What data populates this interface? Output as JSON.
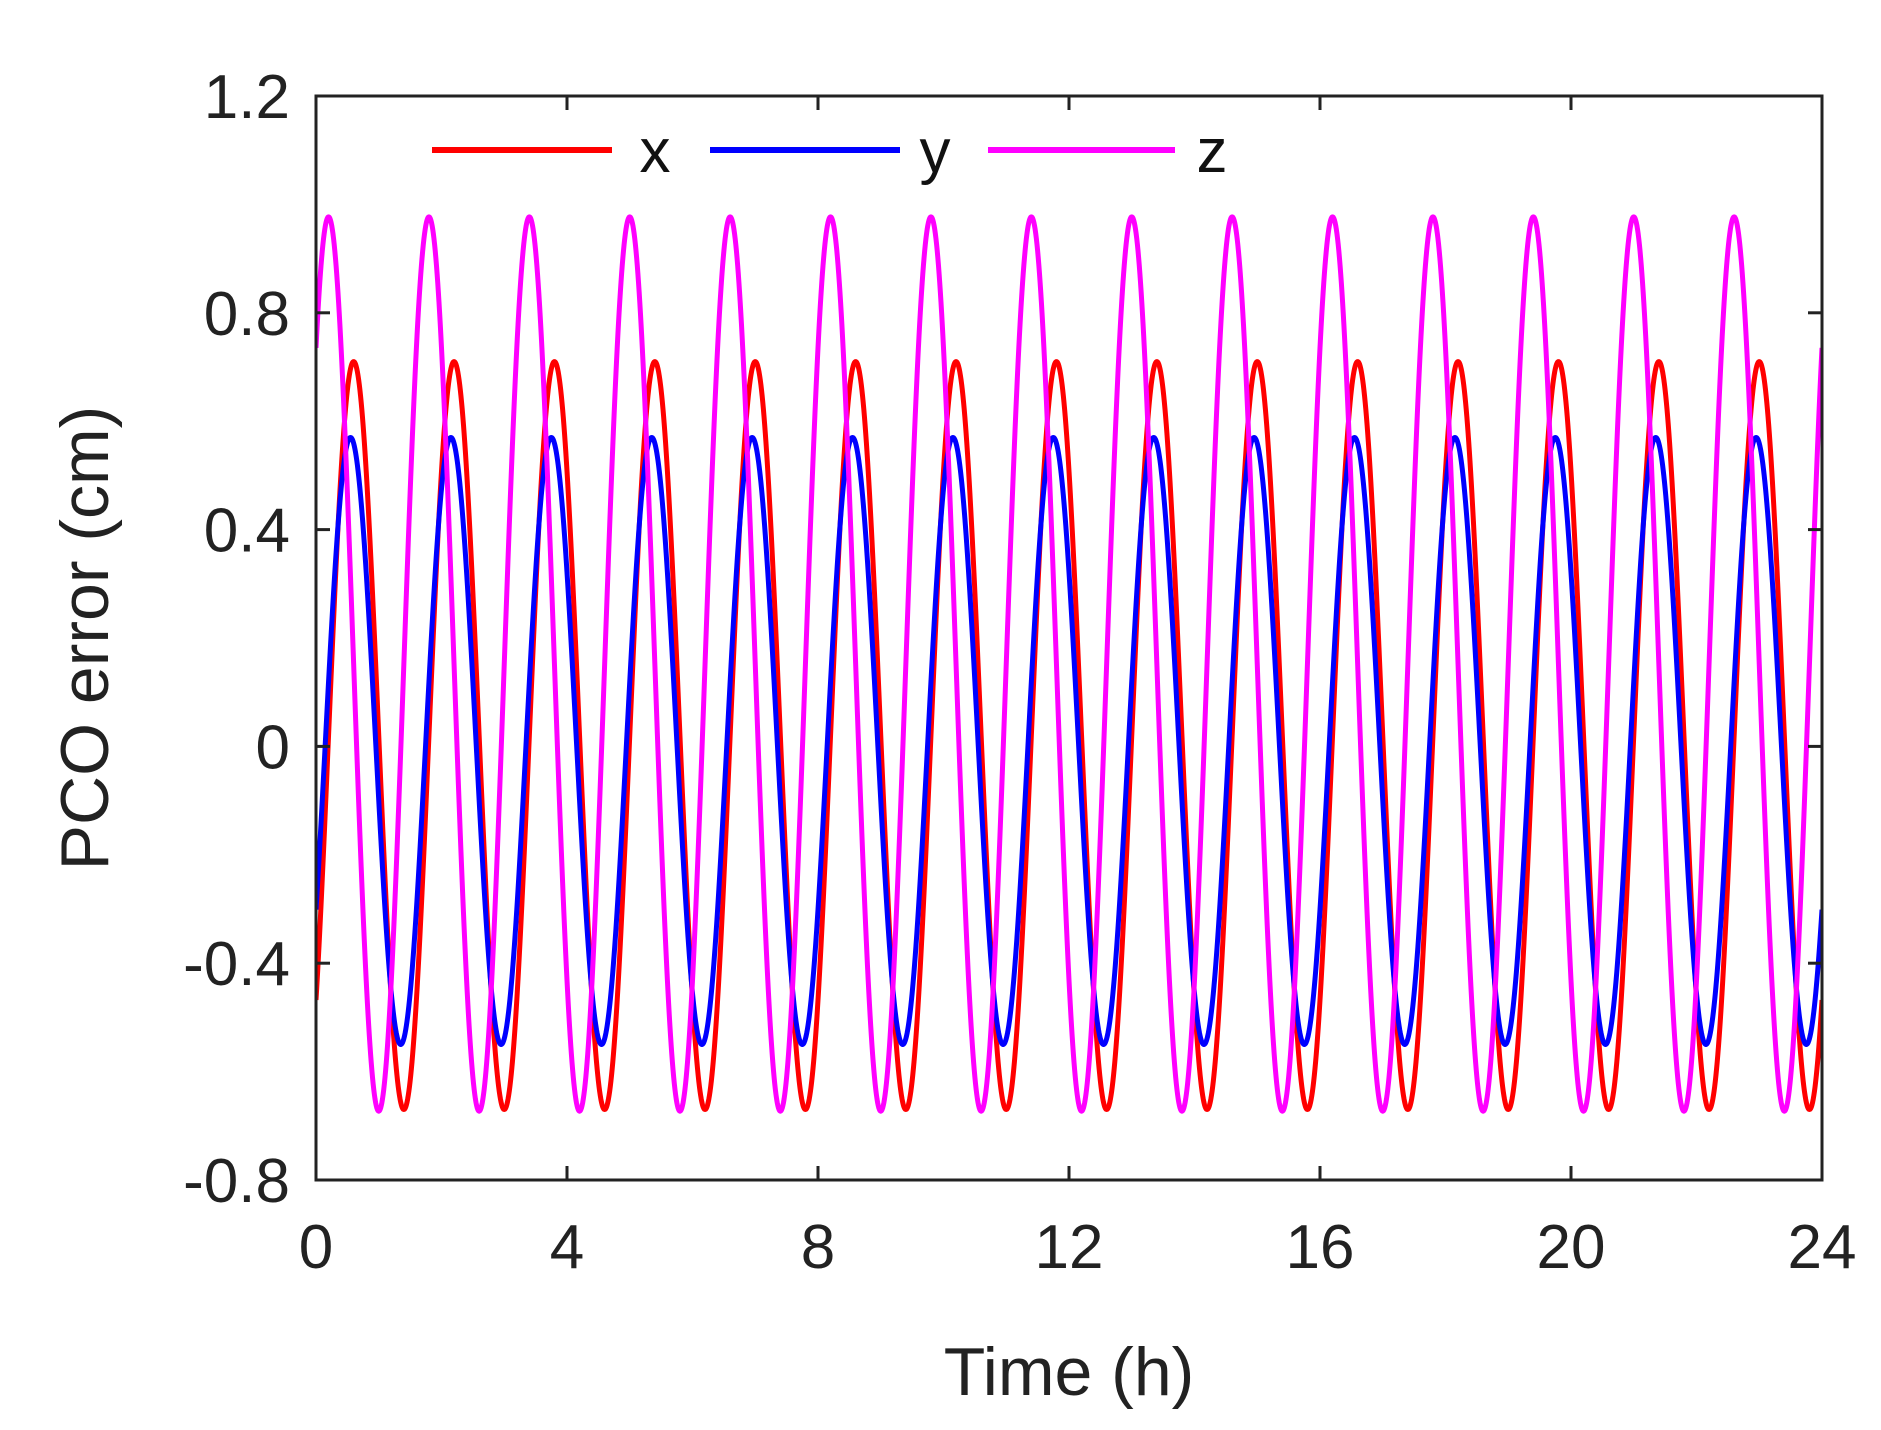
{
  "chart_data": {
    "type": "line",
    "title": "",
    "xlabel": "Time (h)",
    "ylabel": "PCO error (cm)",
    "xlim": [
      0,
      24
    ],
    "ylim": [
      -0.8,
      1.2
    ],
    "xticks": [
      0,
      4,
      8,
      12,
      16,
      20,
      24
    ],
    "yticks": [
      -0.8,
      -0.4,
      0,
      0.4,
      0.8,
      1.2
    ],
    "xtick_labels": [
      "0",
      "4",
      "8",
      "12",
      "16",
      "20",
      "24"
    ],
    "ytick_labels": [
      "-0.8",
      "-0.4",
      "0",
      "0.4",
      "0.8",
      "1.2"
    ],
    "grid": false,
    "legend_position": "top",
    "series": [
      {
        "name": "x",
        "color": "#ff0000",
        "period_h": 1.6,
        "amplitude_cm": 0.69,
        "offset_cm": 0.02,
        "first_peak_h": 0.6,
        "samples": {
          "x": [
            0.6,
            1.4,
            2.2,
            3.0,
            3.8,
            4.6,
            5.4,
            6.2,
            7.0,
            7.8,
            8.6,
            9.4,
            10.2,
            11.0,
            11.8,
            12.6,
            13.4,
            14.2,
            15.0,
            15.8,
            16.6,
            17.4,
            18.2,
            19.0,
            19.8,
            20.6,
            21.4,
            22.2,
            23.0
          ],
          "y": [
            0.71,
            -0.66,
            0.71,
            -0.66,
            0.71,
            -0.66,
            0.71,
            -0.66,
            0.71,
            -0.66,
            0.7,
            -0.66,
            0.7,
            -0.66,
            0.7,
            -0.66,
            0.7,
            -0.66,
            0.7,
            -0.66,
            0.7,
            -0.66,
            0.7,
            -0.66,
            0.72,
            -0.66,
            0.72,
            -0.66,
            0.72
          ]
        }
      },
      {
        "name": "y",
        "color": "#0000ff",
        "period_h": 1.6,
        "amplitude_cm": 0.56,
        "offset_cm": 0.01,
        "first_peak_h": 0.55,
        "samples": {
          "x": [
            0.55,
            1.35,
            2.15,
            2.95,
            3.75,
            4.55,
            5.35,
            6.15,
            6.95,
            7.75,
            8.55,
            9.35,
            10.15,
            10.95,
            11.75,
            12.55,
            13.35,
            14.15,
            14.95,
            15.75,
            16.55,
            17.35,
            18.15,
            18.95,
            19.75,
            20.55,
            21.35,
            22.15,
            22.95
          ],
          "y": [
            0.56,
            -0.54,
            0.56,
            -0.54,
            0.56,
            -0.54,
            0.56,
            -0.54,
            0.56,
            -0.54,
            0.57,
            -0.54,
            0.57,
            -0.54,
            0.57,
            -0.55,
            0.58,
            -0.55,
            0.58,
            -0.54,
            0.57,
            -0.54,
            0.56,
            -0.54,
            0.56,
            -0.54,
            0.56,
            -0.54,
            0.56
          ]
        }
      },
      {
        "name": "z",
        "color": "#ff00ff",
        "period_h": 1.6,
        "amplitude_cm": 0.825,
        "offset_cm": 0.152,
        "first_peak_h": 0.2,
        "samples": {
          "x": [
            0.2,
            1.0,
            1.8,
            2.6,
            3.4,
            4.2,
            5.0,
            5.8,
            6.6,
            7.4,
            8.2,
            9.0,
            9.8,
            10.6,
            11.4,
            12.2,
            13.0,
            13.8,
            14.6,
            15.4,
            16.2,
            17.0,
            17.8,
            18.6,
            19.4,
            20.2,
            21.0,
            21.8,
            22.6,
            23.4
          ],
          "y": [
            0.98,
            -0.67,
            0.98,
            -0.67,
            0.98,
            -0.67,
            0.98,
            -0.67,
            0.98,
            -0.67,
            0.98,
            -0.67,
            0.98,
            -0.67,
            0.98,
            -0.67,
            0.98,
            -0.67,
            0.98,
            -0.68,
            0.98,
            -0.68,
            0.98,
            -0.68,
            0.98,
            -0.67,
            0.98,
            -0.67,
            0.98,
            -0.67
          ]
        }
      }
    ]
  }
}
